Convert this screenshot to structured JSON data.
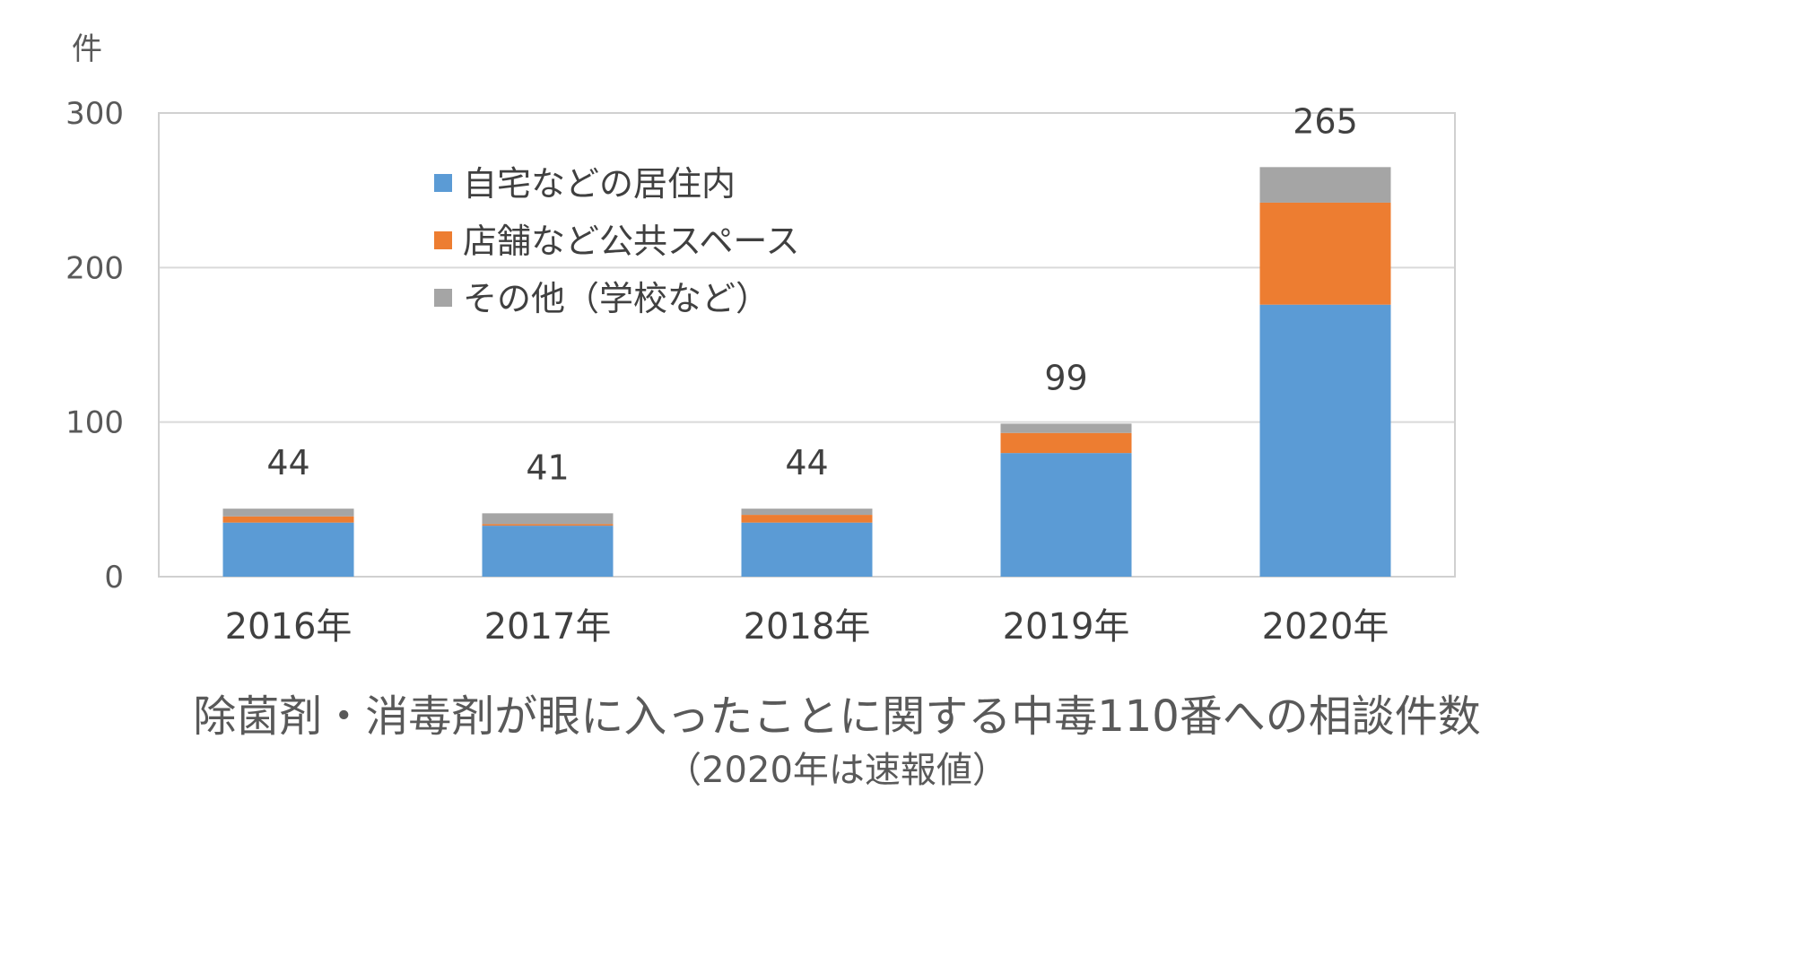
{
  "chart_data": {
    "type": "bar",
    "stacked": true,
    "title": "除菌剤・消毒剤が眼に入ったことに関する中毒110番への相談件数",
    "subtitle": "（2020年は速報値）",
    "ylabel": "件",
    "xlabel": "",
    "ylim": [
      0,
      300
    ],
    "yticks": [
      "0",
      "100",
      "200",
      "300"
    ],
    "grid": true,
    "legend_position": "top-left (inside plot)",
    "categories": [
      "2016年",
      "2017年",
      "2018年",
      "2019年",
      "2020年"
    ],
    "series": [
      {
        "name": "自宅などの居住内",
        "color": "#5B9BD5",
        "values": [
          35,
          33,
          35,
          80,
          176
        ]
      },
      {
        "name": "店舗など公共スペース",
        "color": "#ED7D31",
        "values": [
          4,
          1,
          5,
          13,
          66
        ]
      },
      {
        "name": "その他（学校など）",
        "color": "#A5A5A5",
        "values": [
          5,
          7,
          4,
          6,
          23
        ]
      }
    ],
    "totals": [
      "44",
      "41",
      "44",
      "99",
      "265"
    ]
  }
}
